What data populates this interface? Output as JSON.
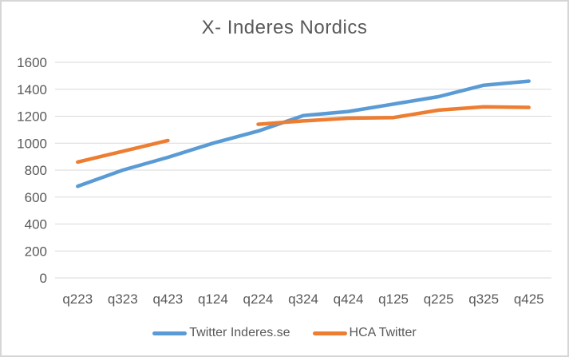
{
  "chart_data": {
    "type": "line",
    "title": "X- Inderes Nordics",
    "categories": [
      "q223",
      "q323",
      "q423",
      "q124",
      "q224",
      "q324",
      "q424",
      "q125",
      "q225",
      "q325",
      "q425"
    ],
    "series": [
      {
        "name": "Twitter Inderes.se",
        "color": "#5B9BD5",
        "values": [
          680,
          800,
          895,
          1000,
          1090,
          1205,
          1235,
          1290,
          1345,
          1430,
          1460
        ]
      },
      {
        "name": "HCA Twitter",
        "color": "#ED7D31",
        "values": [
          860,
          940,
          1020,
          null,
          1140,
          1165,
          1185,
          1190,
          1245,
          1270,
          1265
        ]
      }
    ],
    "ylim": [
      0,
      1600
    ],
    "yticks": [
      0,
      200,
      400,
      600,
      800,
      1000,
      1200,
      1400,
      1600
    ],
    "grid": true,
    "legend_position": "bottom",
    "line_width": 4.5,
    "colors": {
      "grid": "#D9D9D9",
      "text": "#595959",
      "frame_border": "#D6D6D6"
    }
  }
}
